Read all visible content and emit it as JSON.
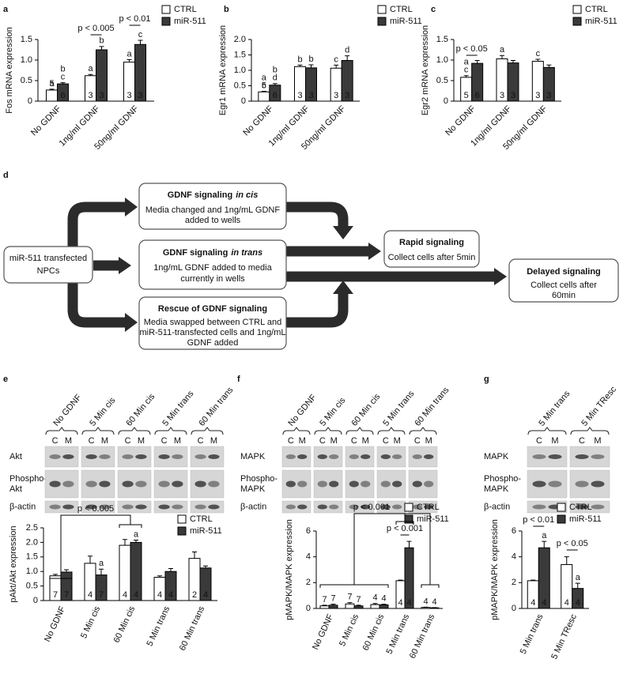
{
  "chart_data": [
    {
      "type": "bar",
      "panel": "a",
      "y_label": "Fos mRNA expression",
      "categories": [
        "No GDNF",
        "1ng/ml GDNF",
        "50ng/ml GDNF"
      ],
      "series": [
        {
          "name": "CTRL",
          "color": "#ffffff",
          "values": [
            0.27,
            0.62,
            0.95
          ],
          "errors": [
            0.02,
            0.03,
            0.06
          ],
          "n": [
            5,
            3,
            3
          ],
          "letters": [
            [
              "a"
            ],
            [
              "a"
            ],
            [
              "a"
            ]
          ]
        },
        {
          "name": "miR-511",
          "color": "#3a3a3a",
          "values": [
            0.42,
            1.25,
            1.38
          ],
          "errors": [
            0.03,
            0.08,
            0.1
          ],
          "n": [
            6,
            3,
            3
          ],
          "letters": [
            [
              "b",
              "c"
            ],
            [
              "b"
            ],
            [
              "c"
            ]
          ]
        }
      ],
      "ylim": [
        0,
        1.5
      ],
      "yticks": [
        0,
        0.5,
        {
          "value": 1,
          "label": "1.0"
        },
        1.5
      ],
      "annotations": [
        "p < 0.005",
        "p < 0.01"
      ],
      "legend": "top-right"
    },
    {
      "type": "bar",
      "panel": "b",
      "y_label": "Egr1 mRNA expression",
      "categories": [
        "No GDNF",
        "1ng/ml GDNF",
        "50ng/ml GDNF"
      ],
      "series": [
        {
          "name": "CTRL",
          "color": "#ffffff",
          "values": [
            0.3,
            1.12,
            1.07
          ],
          "errors": [
            0.02,
            0.05,
            0.1
          ],
          "n": [
            5,
            3,
            3
          ],
          "letters": [
            [
              "a",
              "c"
            ],
            [
              "b"
            ],
            [
              "c"
            ]
          ]
        },
        {
          "name": "miR-511",
          "color": "#3a3a3a",
          "values": [
            0.52,
            1.08,
            1.32
          ],
          "errors": [
            0.05,
            0.1,
            0.15
          ],
          "n": [
            6,
            3,
            3
          ],
          "letters": [
            [
              "b",
              "d"
            ],
            [
              "b"
            ],
            [
              "d"
            ]
          ]
        }
      ],
      "ylim": [
        0,
        2
      ],
      "yticks": [
        0,
        0.5,
        {
          "value": 1,
          "label": "1.0"
        },
        1.5,
        {
          "value": 2,
          "label": "2.0"
        }
      ],
      "annotations": [],
      "legend": "top-right"
    },
    {
      "type": "bar",
      "panel": "c",
      "y_label": "Egr2 mRNA expression",
      "categories": [
        "No GDNF",
        "1ng/ml GDNF",
        "50ng/ml GDNF"
      ],
      "series": [
        {
          "name": "CTRL",
          "color": "#ffffff",
          "values": [
            0.58,
            1.03,
            0.97
          ],
          "errors": [
            0.04,
            0.08,
            0.05
          ],
          "n": [
            5,
            3,
            3
          ],
          "letters": [
            [
              "a",
              "c"
            ],
            [
              "a"
            ],
            [
              "c"
            ]
          ]
        },
        {
          "name": "miR-511",
          "color": "#3a3a3a",
          "values": [
            0.92,
            0.93,
            0.82
          ],
          "errors": [
            0.07,
            0.06,
            0.06
          ],
          "n": [
            6,
            3,
            3
          ],
          "letters": [
            [],
            [],
            []
          ]
        }
      ],
      "ylim": [
        0,
        1.5
      ],
      "yticks": [
        0,
        0.5,
        {
          "value": 1,
          "label": "1.0"
        },
        1.5
      ],
      "annotations": [
        "p < 0.05"
      ],
      "legend": "top-right"
    },
    {
      "type": "bar",
      "panel": "e",
      "y_label": "pAkt/Akt expression",
      "categories": [
        "No GDNF",
        "5 Min cis",
        "60 Min cis",
        "5 Min trans",
        "60 Min trans"
      ],
      "series": [
        {
          "name": "CTRL",
          "color": "#ffffff",
          "values": [
            0.85,
            1.28,
            1.9,
            0.8,
            1.45
          ],
          "errors": [
            0.05,
            0.25,
            0.2,
            0.05,
            0.22
          ],
          "n": [
            7,
            4,
            4,
            4,
            2
          ],
          "letters": [
            [],
            [],
            [],
            [],
            []
          ]
        },
        {
          "name": "miR-511",
          "color": "#3a3a3a",
          "values": [
            0.98,
            0.88,
            2.0,
            1.0,
            1.12
          ],
          "errors": [
            0.08,
            0.2,
            0.08,
            0.1,
            0.07
          ],
          "n": [
            7,
            7,
            4,
            4,
            4
          ],
          "letters": [
            [],
            [
              "a"
            ],
            [
              "a"
            ],
            [],
            []
          ]
        }
      ],
      "ylim": [
        0,
        2.5
      ],
      "yticks": [
        0,
        0.5,
        {
          "value": 1,
          "label": "1.0"
        },
        1.5,
        {
          "value": 2,
          "label": "2.0"
        },
        2.5
      ],
      "annotations": [
        "p < 0.005"
      ],
      "legend": "top-right"
    },
    {
      "type": "bar",
      "panel": "f",
      "y_label": "pMAPK/MAPK expression",
      "categories": [
        "No GDNF",
        "5 Min cis",
        "60 Min cis",
        "5 Min trans",
        "60 Min trans"
      ],
      "series": [
        {
          "name": "CTRL",
          "color": "#ffffff",
          "values": [
            0.2,
            0.35,
            0.3,
            2.15,
            0.08
          ],
          "errors": [
            0.05,
            0.1,
            0.08,
            0.05,
            0.02
          ],
          "n": [
            7,
            7,
            4,
            4,
            4
          ],
          "letters": [
            [],
            [],
            [],
            [],
            []
          ]
        },
        {
          "name": "miR-511",
          "color": "#3a3a3a",
          "values": [
            0.25,
            0.2,
            0.28,
            4.7,
            0.05
          ],
          "errors": [
            0.08,
            0.05,
            0.05,
            0.5,
            0.02
          ],
          "n": [
            7,
            7,
            4,
            4,
            4
          ],
          "letters": [
            [],
            [],
            [],
            [],
            []
          ]
        }
      ],
      "ylim": [
        0,
        6
      ],
      "yticks": [
        0,
        2,
        4,
        6
      ],
      "annotations": [
        "p < 0.001",
        "p < 0.001"
      ],
      "legend": "top-right"
    },
    {
      "type": "bar",
      "panel": "g",
      "y_label": "pMAPK/MAPK expression",
      "categories": [
        "5 Min trans",
        "5 Min TResc"
      ],
      "series": [
        {
          "name": "CTRL",
          "color": "#ffffff",
          "values": [
            2.15,
            3.4
          ],
          "errors": [
            0.05,
            0.6
          ],
          "n": [
            4,
            4
          ],
          "letters": [
            [],
            []
          ]
        },
        {
          "name": "miR-511",
          "color": "#3a3a3a",
          "values": [
            4.7,
            1.55
          ],
          "errors": [
            0.5,
            0.4
          ],
          "n": [
            4,
            4
          ],
          "letters": [
            [
              "a"
            ],
            [
              "a"
            ]
          ]
        }
      ],
      "ylim": [
        0,
        6
      ],
      "yticks": [
        0,
        2,
        4,
        6
      ],
      "annotations": [
        "p < 0.01",
        "p < 0.05"
      ],
      "legend": "top-right"
    }
  ],
  "blots": [
    {
      "groups": [
        "No GDNF",
        "5 Min cis",
        "60 Min cis",
        "5 Min trans",
        "60 Min trans"
      ],
      "lanes": [
        "C",
        "M"
      ],
      "rows": [
        [
          "Akt"
        ],
        [
          "Phospho-",
          "Akt"
        ],
        [
          "β-actin"
        ]
      ]
    },
    {
      "groups": [
        "No GDNF",
        "5 Min cis",
        "60 Min cis",
        "5 Min trans",
        "60 Min trans"
      ],
      "lanes": [
        "C",
        "M"
      ],
      "rows": [
        [
          "MAPK"
        ],
        [
          "Phospho-",
          "MAPK"
        ],
        [
          "β-actin"
        ]
      ]
    },
    {
      "groups": [
        "5 Min trans",
        "5 Min TResc"
      ],
      "lanes": [
        "C",
        "M"
      ],
      "rows": [
        [
          "MAPK"
        ],
        [
          "Phospho-",
          "MAPK"
        ],
        [
          "β-actin"
        ]
      ]
    }
  ],
  "diagram": {
    "panel": "d",
    "source": {
      "lines": [
        "miR-511 transfected",
        "NPCs"
      ]
    },
    "branches": [
      {
        "title": "GDNF signaling",
        "title_italic": "in cis",
        "lines": [
          "Media changed and 1ng/mL GDNF",
          "added to wells"
        ]
      },
      {
        "title": "GDNF signaling",
        "title_italic": "in trans",
        "lines": [
          "1ng/mL GDNF added to media",
          "currently in wells"
        ]
      },
      {
        "title": "Rescue of GDNF signaling",
        "lines": [
          "Media swapped between CTRL and",
          "miR-511-transfected cells and 1ng/mL",
          "GDNF added"
        ]
      }
    ],
    "outcomes": [
      {
        "title": "Rapid signaling",
        "lines": [
          "Collect cells after 5min"
        ]
      },
      {
        "title": "Delayed signaling",
        "lines": [
          "Collect cells after",
          "60min"
        ]
      }
    ]
  }
}
